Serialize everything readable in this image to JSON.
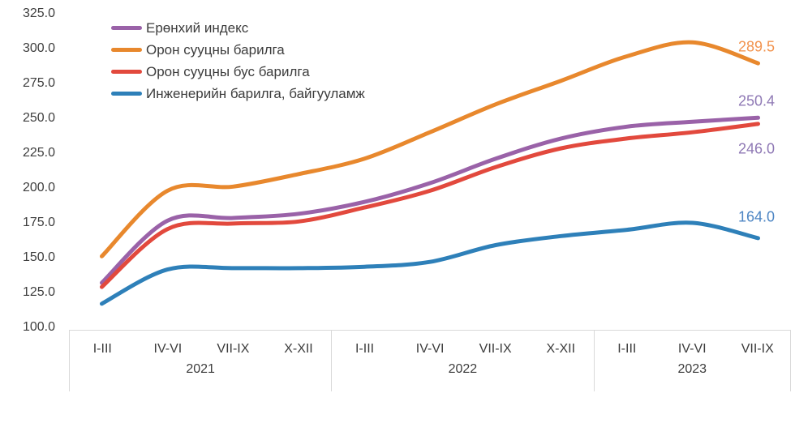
{
  "chart_data": {
    "type": "line",
    "title": "",
    "grid": false,
    "legend_position": "top-left",
    "y_axis": {
      "min": 100,
      "max": 325,
      "step": 25,
      "ticks": [
        "325.0",
        "300.0",
        "275.0",
        "250.0",
        "225.0",
        "200.0",
        "175.0",
        "150.0",
        "125.0",
        "100.0"
      ]
    },
    "x_axis": {
      "groups": [
        {
          "year": "2021",
          "quarters": [
            "I-III",
            "IV-VI",
            "VII-IX",
            "X-XII"
          ]
        },
        {
          "year": "2022",
          "quarters": [
            "I-III",
            "IV-VI",
            "VII-IX",
            "X-XII"
          ]
        },
        {
          "year": "2023",
          "quarters": [
            "I-III",
            "IV-VI",
            "VII-IX"
          ]
        }
      ]
    },
    "series": [
      {
        "name": "Ерөнхий индекс",
        "color": "#9a62a8",
        "values": [
          132,
          176.5,
          178.5,
          181.5,
          190,
          203.5,
          221,
          235.5,
          244,
          247.5,
          250.4
        ],
        "end_label": "250.4",
        "end_label_color": "#8f79b5",
        "end_label_dy": -20
      },
      {
        "name": "Орон сууцны барилга",
        "color": "#e8882d",
        "values": [
          151,
          198,
          201,
          210,
          221,
          240,
          260,
          277,
          294.5,
          304.5,
          289.5
        ],
        "end_label": "289.5",
        "end_label_color": "#f2934e",
        "end_label_dy": -20
      },
      {
        "name": "Орон сууцны бус барилга",
        "color": "#e2493d",
        "values": [
          129,
          170.5,
          174.5,
          176,
          186,
          198,
          215,
          228.5,
          235.5,
          240,
          246.0
        ],
        "end_label": "246.0",
        "end_label_color": "#8f79b5",
        "end_label_dy": 31
      },
      {
        "name": "Инженерийн барилга, байгууламж",
        "color": "#2e80b9",
        "values": [
          117,
          141.5,
          142.5,
          142.5,
          143.5,
          147,
          159,
          165.5,
          170,
          175,
          164.0
        ],
        "end_label": "164.0",
        "end_label_color": "#4e86c4",
        "end_label_dy": -26
      }
    ],
    "colors": {
      "axis_text": "#3c3c3c",
      "axis_border": "#d9d9d9",
      "background": "#ffffff"
    }
  }
}
